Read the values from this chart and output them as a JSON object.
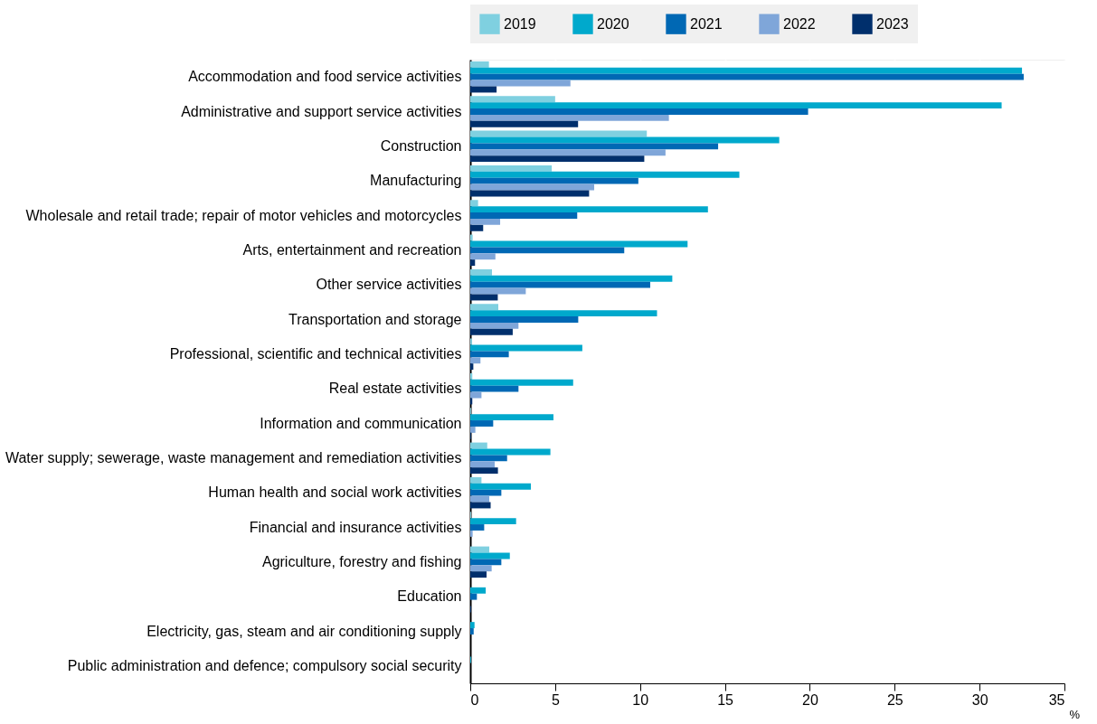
{
  "chart_data": {
    "type": "bar",
    "orientation": "horizontal",
    "categories": [
      "Accommodation and food service activities",
      "Administrative and support service activities",
      "Construction",
      "Manufacturing",
      "Wholesale and retail trade; repair of motor vehicles and motorcycles",
      "Arts, entertainment and recreation",
      "Other service activities",
      "Transportation and storage",
      "Professional, scientific and technical activities",
      "Real estate activities",
      "Information and communication",
      "Water supply; sewerage, waste management and remediation activities",
      "Human health and social work activities",
      "Financial and insurance activities",
      "Agriculture, forestry and fishing",
      "Education",
      "Electricity, gas, steam and air conditioning supply",
      "Public administration and defence; compulsory social security"
    ],
    "series": [
      {
        "name": "2019",
        "color": "#7fd0e0",
        "values": [
          1.1,
          5.0,
          10.4,
          4.8,
          0.46,
          0.14,
          1.28,
          1.65,
          0.1,
          0.12,
          0.05,
          1.0,
          0.66,
          0.05,
          1.12,
          0.0,
          0.0,
          0.0
        ]
      },
      {
        "name": "2020",
        "color": "#00a9cc",
        "values": [
          32.5,
          31.3,
          18.2,
          15.85,
          14.0,
          12.8,
          11.9,
          11.0,
          6.6,
          6.06,
          4.9,
          4.72,
          3.57,
          2.7,
          2.33,
          0.91,
          0.25,
          0.05
        ]
      },
      {
        "name": "2021",
        "color": "#0068b4",
        "values": [
          32.6,
          19.9,
          14.6,
          9.9,
          6.3,
          9.07,
          10.6,
          6.36,
          2.27,
          2.84,
          1.35,
          2.17,
          1.83,
          0.82,
          1.83,
          0.39,
          0.2,
          0.0
        ]
      },
      {
        "name": "2022",
        "color": "#7fa6d9",
        "values": [
          5.9,
          11.7,
          11.5,
          7.3,
          1.76,
          1.48,
          3.27,
          2.84,
          0.6,
          0.66,
          0.3,
          1.44,
          1.12,
          0.14,
          1.26,
          0.0,
          0.0,
          0.0
        ]
      },
      {
        "name": "2023",
        "color": "#002f6c",
        "values": [
          1.55,
          6.35,
          10.25,
          7.0,
          0.76,
          0.28,
          1.62,
          2.5,
          0.18,
          0.12,
          0.05,
          1.63,
          1.2,
          0.0,
          0.96,
          0.05,
          0.0,
          0.0
        ]
      }
    ],
    "xlabel": "%",
    "xlim": [
      0,
      35
    ],
    "xticks": [
      0,
      5,
      10,
      15,
      20,
      25,
      30,
      35
    ],
    "grid": true,
    "legend": "top"
  }
}
